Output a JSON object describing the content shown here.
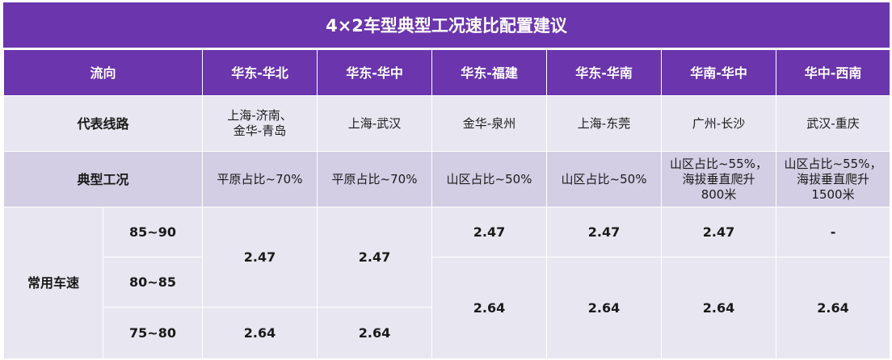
{
  "title": "4×2车型典型工况速比配置建议",
  "headers": [
    "流向",
    "华东-华北",
    "华东-华中",
    "华东-福建",
    "华东-华南",
    "华南-华中",
    "华中-西南"
  ],
  "rows": {
    "route": {
      "label": "代表线路",
      "values": [
        "上海-济南、\n金华-青岛",
        "上海-武汉",
        "金华-泉州",
        "上海-东莞",
        "广州-长沙",
        "武汉-重庆"
      ]
    },
    "condition": {
      "label": "典型工况",
      "values": [
        "平原占比~70%",
        "平原占比~70%",
        "山区占比~50%",
        "山区占比~50%",
        "山区占比~55%，\n海拔垂直爬升\n800米",
        "山区占比~55%，\n海拔垂直爬升\n1500米"
      ]
    }
  },
  "speed": {
    "label": "常用车速",
    "bands": [
      "85~90",
      "80~85",
      "75~80"
    ],
    "huadong_huabei": {
      "top": "2.47",
      "bottom": "2.64"
    },
    "huadong_huazhong": {
      "top": "2.47",
      "bottom": "2.64"
    },
    "huadong_fujian": {
      "top": "2.47",
      "bottom": "2.64"
    },
    "huadong_huanan": {
      "top": "2.47",
      "bottom": "2.64"
    },
    "huanan_huazhong": {
      "top": "2.47",
      "bottom": "2.64"
    },
    "huazhong_xinan": {
      "top": "-",
      "bottom": "2.64"
    }
  }
}
